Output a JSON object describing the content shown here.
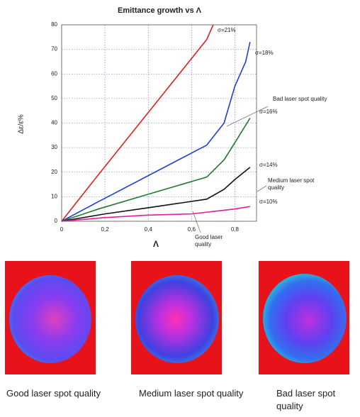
{
  "chart_data": {
    "type": "line",
    "title": "Emittance growth vs Λ",
    "x_label": "Λ",
    "y_label": "Δε/ε%",
    "xlim": [
      0,
      0.9
    ],
    "ylim": [
      0,
      80
    ],
    "xticks": [
      0,
      {
        "value": 0.2,
        "label": "0,2"
      },
      {
        "value": 0.4,
        "label": "0,4"
      },
      {
        "value": 0.6,
        "label": "0,6"
      },
      {
        "value": 0.8,
        "label": "0,8"
      }
    ],
    "yticks": [
      0,
      10,
      20,
      30,
      40,
      50,
      60,
      70,
      80
    ],
    "grid": true,
    "series": [
      {
        "name": "σ=21%",
        "color": "#e02020",
        "x": [
          0,
          0.17,
          0.67,
          0.7
        ],
        "values": [
          0,
          19,
          74,
          80
        ]
      },
      {
        "name": "σ=18%",
        "color": "#1f3fd0",
        "x": [
          0,
          0.17,
          0.67,
          0.75,
          0.8,
          0.85,
          0.87
        ],
        "values": [
          0,
          8,
          31,
          40,
          55,
          65,
          73
        ]
      },
      {
        "name": "σ=16%",
        "color": "#1f7a2a",
        "x": [
          0,
          0.17,
          0.4,
          0.67,
          0.75,
          0.8,
          0.87
        ],
        "values": [
          0,
          5,
          11,
          18,
          25,
          32,
          42
        ]
      },
      {
        "name": "σ=14%",
        "color": "#111111",
        "x": [
          0,
          0.2,
          0.4,
          0.67,
          0.75,
          0.8,
          0.87
        ],
        "values": [
          0,
          3,
          5.5,
          9,
          13,
          17,
          22
        ]
      },
      {
        "name": "σ=10%",
        "color": "#e020a0",
        "x": [
          0,
          0.2,
          0.4,
          0.6,
          0.7,
          0.8,
          0.87
        ],
        "values": [
          0,
          1.5,
          2.5,
          3,
          4,
          5,
          6
        ]
      }
    ],
    "annotations": [
      {
        "text": "Bad laser spot quality"
      },
      {
        "text": "Medium laser spot quality"
      },
      {
        "text": "Good laser quality"
      }
    ]
  },
  "images": [
    {
      "caption": "Good laser spot quality"
    },
    {
      "caption": "Medium laser spot quality"
    },
    {
      "caption": "Bad laser spot quality"
    }
  ]
}
